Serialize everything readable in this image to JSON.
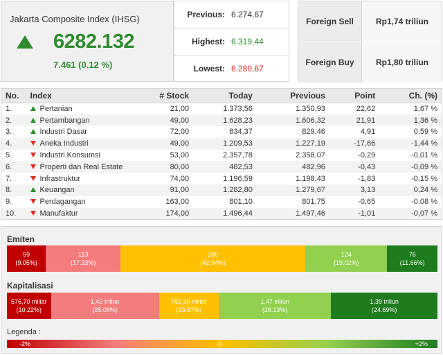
{
  "index": {
    "title": "Jakarta Composite Index (IHSG)",
    "value": "6282.132",
    "change": "7.461 (0.12 %)",
    "trend": "up"
  },
  "stats": {
    "previous_label": "Previous:",
    "previous_value": "6.274,67",
    "highest_label": "Highest:",
    "highest_value": "6.319,44",
    "lowest_label": "Lowest:",
    "lowest_value": "6.280,67"
  },
  "foreign": {
    "sell_label": "Foreign Sell",
    "sell_value": "Rp1,74 triliun",
    "buy_label": "Foreign Buy",
    "buy_value": "Rp1,80 triliun"
  },
  "table": {
    "headers": [
      "No.",
      "Index",
      "# Stock",
      "Today",
      "Previous",
      "Point",
      "Ch. (%)"
    ],
    "rows": [
      {
        "no": "1.",
        "name": "Pertanian",
        "trend": "up",
        "stock": "21,00",
        "today": "1.373,56",
        "previous": "1.350,93",
        "point": "22,62",
        "ch": "1,67 %"
      },
      {
        "no": "2.",
        "name": "Pertambangan",
        "trend": "up",
        "stock": "49,00",
        "today": "1.628,23",
        "previous": "1.606,32",
        "point": "21,91",
        "ch": "1,36 %"
      },
      {
        "no": "3.",
        "name": "Industri Dasar",
        "trend": "up",
        "stock": "72,00",
        "today": "834,37",
        "previous": "829,46",
        "point": "4,91",
        "ch": "0,59 %"
      },
      {
        "no": "4.",
        "name": "Aneka Industri",
        "trend": "down",
        "stock": "49,00",
        "today": "1.209,53",
        "previous": "1.227,19",
        "point": "-17,66",
        "ch": "-1,44 %"
      },
      {
        "no": "5.",
        "name": "Industri Konsumsi",
        "trend": "down",
        "stock": "53,00",
        "today": "2.357,78",
        "previous": "2.358,07",
        "point": "-0,29",
        "ch": "-0,01 %"
      },
      {
        "no": "6.",
        "name": "Properti dan Real Estate",
        "trend": "down",
        "stock": "80,00",
        "today": "482,53",
        "previous": "482,96",
        "point": "-0,43",
        "ch": "-0,09 %"
      },
      {
        "no": "7.",
        "name": "Infrastruktur",
        "trend": "down",
        "stock": "74,00",
        "today": "1.196,59",
        "previous": "1.198,43",
        "point": "-1,83",
        "ch": "-0,15 %"
      },
      {
        "no": "8.",
        "name": "Keuangan",
        "trend": "up",
        "stock": "91,00",
        "today": "1.282,80",
        "previous": "1.279,67",
        "point": "3,13",
        "ch": "0,24 %"
      },
      {
        "no": "9.",
        "name": "Perdagangan",
        "trend": "down",
        "stock": "163,00",
        "today": "801,10",
        "previous": "801,75",
        "point": "-0,65",
        "ch": "-0,08 %"
      },
      {
        "no": "10.",
        "name": "Manufaktur",
        "trend": "down",
        "stock": "174,00",
        "today": "1.496,44",
        "previous": "1.497,46",
        "point": "-1,01",
        "ch": "-0,07 %"
      }
    ]
  },
  "emiten": {
    "title": "Emiten",
    "segments": [
      {
        "value": "59",
        "pct": "(9.05%)",
        "share": 9.05,
        "color": "#c00000"
      },
      {
        "value": "113",
        "pct": "(17.33%)",
        "share": 17.33,
        "color": "#f47c7c"
      },
      {
        "value": "280",
        "pct": "(42.94%)",
        "share": 42.94,
        "color": "#ffc000"
      },
      {
        "value": "124",
        "pct": "(19.02%)",
        "share": 19.02,
        "color": "#92d050"
      },
      {
        "value": "76",
        "pct": "(11.66%)",
        "share": 11.66,
        "color": "#1e7b1e"
      }
    ]
  },
  "kapitalisasi": {
    "title": "Kapitalisasi",
    "segments": [
      {
        "value": "576,70 miliar",
        "pct": "(10.22%)",
        "share": 10.22,
        "color": "#c00000"
      },
      {
        "value": "1,42 triliun",
        "pct": "(25.09%)",
        "share": 25.09,
        "color": "#f47c7c"
      },
      {
        "value": "782,30 miliar",
        "pct": "(13.87%)",
        "share": 13.87,
        "color": "#ffc000"
      },
      {
        "value": "1,47 triliun",
        "pct": "(26.13%)",
        "share": 26.13,
        "color": "#92d050"
      },
      {
        "value": "1,39 triliun",
        "pct": "(24.69%)",
        "share": 24.69,
        "color": "#1e7b1e"
      }
    ]
  },
  "legend": {
    "title": "Legenda :",
    "min": "-2%",
    "mid": "0",
    "max": "+2%"
  }
}
